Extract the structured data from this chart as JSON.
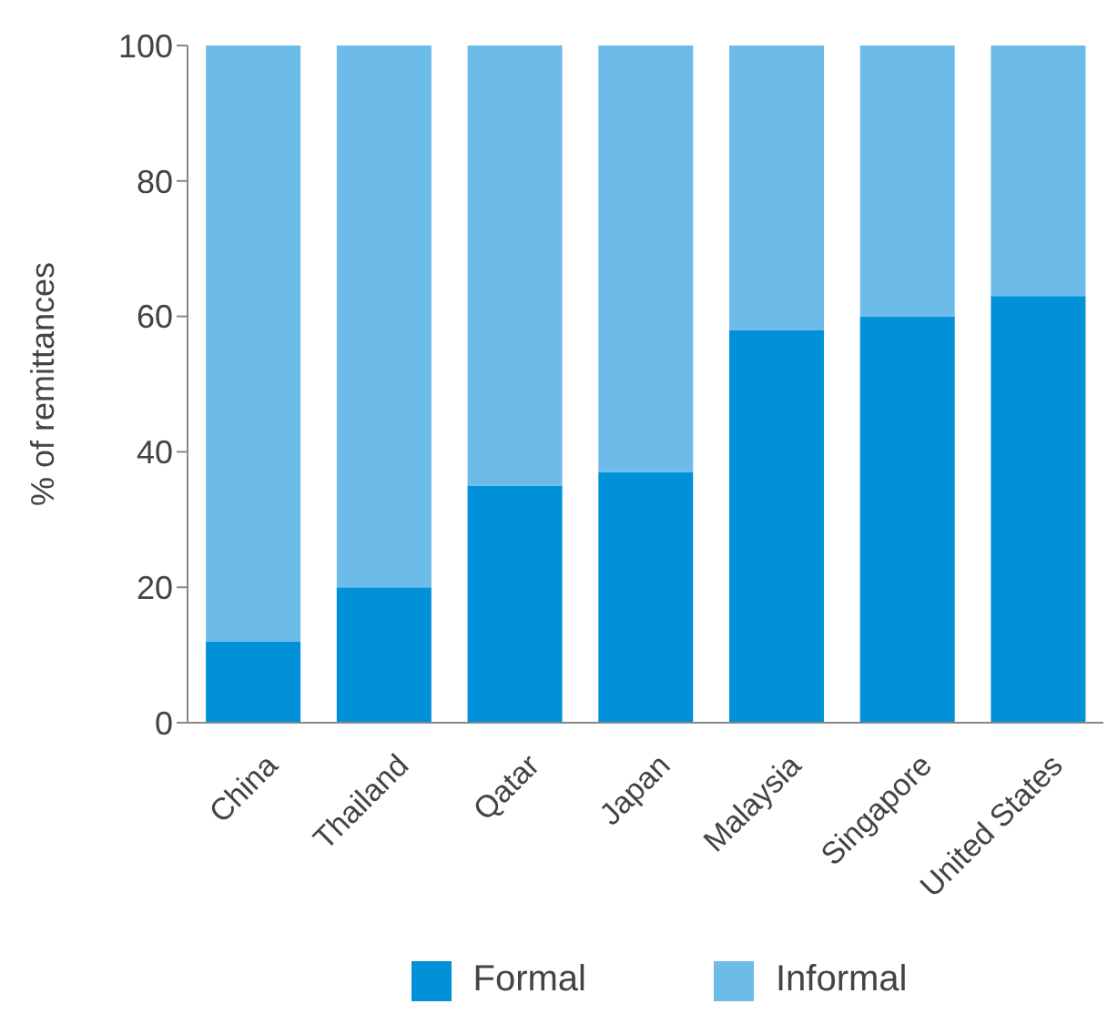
{
  "chart_data": {
    "type": "bar",
    "ylabel": "% of remittances",
    "categories": [
      "China",
      "Thailand",
      "Qatar",
      "Japan",
      "Malaysia",
      "Singapore",
      "United States"
    ],
    "series": [
      {
        "name": "Formal",
        "color": "#0091d9",
        "values": [
          12,
          20,
          35,
          37,
          58,
          60,
          63
        ]
      },
      {
        "name": "Informal",
        "color": "#6dbbe8",
        "values": [
          88,
          80,
          65,
          63,
          42,
          40,
          37
        ]
      }
    ],
    "stacked": true,
    "ylim": [
      0,
      100
    ],
    "yticks": [
      0,
      20,
      40,
      60,
      80,
      100
    ],
    "grid": false,
    "legend": "bottom"
  }
}
